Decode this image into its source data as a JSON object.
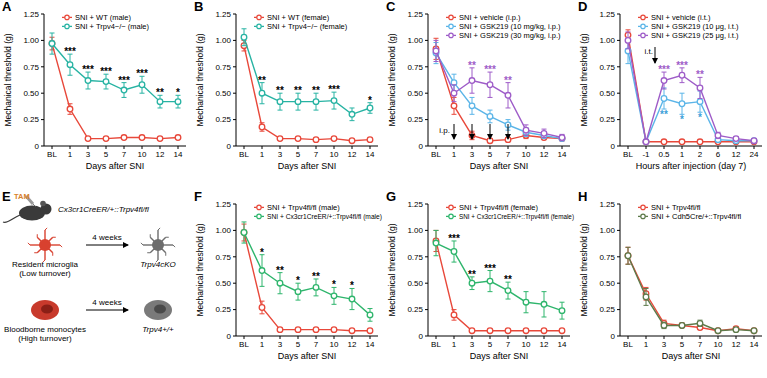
{
  "chart_data": [
    {
      "panel": "A",
      "type": "line",
      "marker": "circle",
      "line_style": "solid",
      "legend": "top-right",
      "x_label": "Days after SNI",
      "y_label": "Mechanical threshold (g)",
      "categories": [
        "BL",
        "1",
        "3",
        "5",
        "7",
        "10",
        "12",
        "14"
      ],
      "ylim": [
        0,
        1.25
      ],
      "yticks": [
        0,
        0.25,
        {
          "value": 0.5,
          "label": "0.50"
        },
        0.75,
        {
          "value": 1,
          "label": "1.00"
        },
        1.25
      ],
      "series": [
        {
          "name": "SNI + WT (male)",
          "color": "#e8483a",
          "values": [
            0.97,
            0.35,
            0.07,
            0.07,
            0.08,
            0.08,
            0.07,
            0.08
          ],
          "errors": [
            0.06,
            0.05,
            0.01,
            0.01,
            0.01,
            0.01,
            0.01,
            0.01
          ]
        },
        {
          "name": "SNI + Trpv4−/− (male)",
          "color": "#27b3a3",
          "values": [
            0.97,
            0.77,
            0.62,
            0.61,
            0.53,
            0.58,
            0.42,
            0.42
          ],
          "errors": [
            0.1,
            0.1,
            0.08,
            0.07,
            0.07,
            0.08,
            0.06,
            0.06
          ]
        }
      ],
      "significance": [
        {
          "series": 1,
          "position": "above",
          "color": "#000000",
          "labels": [
            null,
            "***",
            "***",
            "***",
            "***",
            "***",
            "**",
            "*"
          ]
        }
      ]
    },
    {
      "panel": "B",
      "type": "line",
      "marker": "circle",
      "line_style": "solid",
      "legend": "top-right",
      "x_label": "Days after SNI",
      "y_label": "Mechanical threshold (g)",
      "categories": [
        "BL",
        "1",
        "3",
        "5",
        "7",
        "10",
        "12",
        "14"
      ],
      "ylim": [
        0,
        1.25
      ],
      "yticks": [
        0,
        0.25,
        {
          "value": 0.5,
          "label": "0.50"
        },
        0.75,
        {
          "value": 1,
          "label": "1.00"
        },
        1.25
      ],
      "series": [
        {
          "name": "SNI + WT (female)",
          "color": "#e8483a",
          "values": [
            0.95,
            0.18,
            0.07,
            0.07,
            0.06,
            0.07,
            0.05,
            0.06
          ],
          "errors": [
            0.05,
            0.04,
            0.01,
            0.01,
            0.01,
            0.01,
            0.01,
            0.01
          ]
        },
        {
          "name": "SNI + Trpv4−/− (female)",
          "color": "#27b3a3",
          "values": [
            1.03,
            0.5,
            0.42,
            0.42,
            0.42,
            0.43,
            0.3,
            0.36
          ],
          "errors": [
            0.08,
            0.1,
            0.08,
            0.08,
            0.08,
            0.08,
            0.06,
            0.05
          ]
        }
      ],
      "significance": [
        {
          "series": 1,
          "position": "above",
          "color": "#000000",
          "labels": [
            null,
            "**",
            "**",
            "**",
            "**",
            "***",
            null,
            "*"
          ]
        }
      ]
    },
    {
      "panel": "C",
      "type": "line",
      "marker": "circle",
      "line_style": "solid",
      "legend": "top-right",
      "x_label": "Days after SNI",
      "y_label": "Mechanical threshold (g)",
      "categories": [
        "BL",
        "1",
        "3",
        "5",
        "7",
        "10",
        "12",
        "14"
      ],
      "ylim": [
        0,
        1.25
      ],
      "yticks": [
        0,
        0.25,
        {
          "value": 0.5,
          "label": "0.50"
        },
        0.75,
        {
          "value": 1,
          "label": "1.00"
        },
        1.25
      ],
      "series": [
        {
          "name": "SNI + vehicle (i.p.)",
          "color": "#e8483a",
          "values": [
            0.92,
            0.38,
            0.1,
            0.05,
            0.06,
            0.1,
            0.08,
            0.07
          ],
          "errors": [
            0.1,
            0.08,
            0.04,
            0.02,
            0.02,
            0.03,
            0.02,
            0.02
          ]
        },
        {
          "name": "SNI + GSK219 (10 mg/kg, i.p.)",
          "color": "#5bb5e8",
          "values": [
            0.88,
            0.6,
            0.38,
            0.28,
            0.2,
            0.13,
            0.1,
            0.07
          ],
          "errors": [
            0.1,
            0.08,
            0.08,
            0.06,
            0.05,
            0.04,
            0.03,
            0.02
          ]
        },
        {
          "name": "SNI + GSK219 (30 mg/kg, i.p.)",
          "color": "#9e5cc8",
          "values": [
            0.9,
            0.5,
            0.62,
            0.58,
            0.48,
            0.15,
            0.12,
            0.08
          ],
          "errors": [
            0.1,
            0.08,
            0.12,
            0.12,
            0.12,
            0.05,
            0.04,
            0.03
          ]
        }
      ],
      "significance": [
        {
          "series": 2,
          "position": "above",
          "color": "#9e5cc8",
          "labels": [
            null,
            null,
            "**",
            "***",
            "**",
            null,
            null,
            null
          ]
        }
      ],
      "annotations": [
        {
          "text": "i.p.",
          "at": [
            "1",
            "3",
            "5",
            "7"
          ]
        }
      ]
    },
    {
      "panel": "D",
      "type": "line",
      "marker": "circle",
      "line_style": "solid",
      "legend": "top-right",
      "x_label": "Hours after injection (day 7)",
      "y_label": "Mechanical threshold (g)",
      "categories": [
        "BL",
        "-1",
        "0.5",
        "1",
        "2",
        "6",
        "12",
        "24"
      ],
      "ylim": [
        0,
        1.25
      ],
      "yticks": [
        0,
        0.25,
        {
          "value": 0.5,
          "label": "0.50"
        },
        0.75,
        {
          "value": 1,
          "label": "1.00"
        },
        1.25
      ],
      "series": [
        {
          "name": "SNI + vehicle (i.t.)",
          "color": "#e8483a",
          "values": [
            1.05,
            0.04,
            0.04,
            0.04,
            0.04,
            0.04,
            0.04,
            0.04
          ],
          "errors": [
            0.05,
            0.01,
            0.01,
            0.01,
            0.01,
            0.01,
            0.01,
            0.01
          ]
        },
        {
          "name": "SNI + GSK219 (10 μg, i.t.)",
          "color": "#5bb5e8",
          "values": [
            0.9,
            0.04,
            0.45,
            0.4,
            0.42,
            0.06,
            0.05,
            0.05
          ],
          "errors": [
            0.12,
            0.01,
            0.1,
            0.1,
            0.1,
            0.02,
            0.02,
            0.02
          ]
        },
        {
          "name": "SNI + GSK219 (25 μg, i.t.)",
          "color": "#9e5cc8",
          "values": [
            1.0,
            0.04,
            0.62,
            0.67,
            0.55,
            0.1,
            0.07,
            0.05
          ],
          "errors": [
            0.08,
            0.01,
            0.08,
            0.07,
            0.1,
            0.03,
            0.02,
            0.02
          ]
        }
      ],
      "significance": [
        {
          "series": 2,
          "position": "above",
          "color": "#9e5cc8",
          "labels": [
            null,
            null,
            "***",
            "***",
            "**",
            null,
            null,
            null
          ]
        },
        {
          "series": 1,
          "position": "below",
          "color": "#3a9fd8",
          "labels": [
            null,
            null,
            "**",
            "*",
            "*",
            null,
            null,
            null
          ]
        }
      ],
      "annotations": [
        {
          "text": "i.t.",
          "between": [
            "-1",
            "0.5"
          ]
        }
      ]
    },
    {
      "panel": "F",
      "type": "line",
      "marker": "circle",
      "line_style": "solid",
      "legend": "top-right",
      "x_label": "Days after SNI",
      "y_label": "Mechanical threshold (g)",
      "categories": [
        "BL",
        "1",
        "3",
        "5",
        "7",
        "10",
        "12",
        "14"
      ],
      "ylim": [
        0,
        1.25
      ],
      "yticks": [
        0,
        0.25,
        {
          "value": 0.5,
          "label": "0.50"
        },
        0.75,
        {
          "value": 1,
          "label": "1.00"
        },
        1.25
      ],
      "series": [
        {
          "name": "SNI + Trpv4fl/fl (male)",
          "color": "#e8483a",
          "values": [
            0.98,
            0.27,
            0.06,
            0.06,
            0.06,
            0.06,
            0.05,
            0.05
          ],
          "errors": [
            0.08,
            0.06,
            0.01,
            0.01,
            0.01,
            0.01,
            0.01,
            0.01
          ]
        },
        {
          "name": "SNI + Cx3cr1CreER/+::Trpv4fl/fl (male)",
          "color": "#2eb56c",
          "values": [
            0.98,
            0.62,
            0.5,
            0.42,
            0.46,
            0.38,
            0.35,
            0.2
          ],
          "errors": [
            0.1,
            0.15,
            0.1,
            0.08,
            0.08,
            0.08,
            0.1,
            0.06
          ]
        }
      ],
      "significance": [
        {
          "series": 1,
          "position": "above",
          "color": "#000000",
          "labels": [
            null,
            "*",
            "**",
            "*",
            "**",
            "*",
            "*",
            null
          ]
        }
      ]
    },
    {
      "panel": "G",
      "type": "line",
      "marker": "circle",
      "line_style": "solid",
      "legend": "top-right",
      "x_label": "Days after SNI",
      "y_label": "Mechanical threshold (g)",
      "categories": [
        "BL",
        "1",
        "3",
        "5",
        "7",
        "10",
        "12",
        "14"
      ],
      "ylim": [
        0,
        1.25
      ],
      "yticks": [
        0,
        0.25,
        {
          "value": 0.5,
          "label": "0.50"
        },
        0.75,
        {
          "value": 1,
          "label": "1.00"
        },
        1.25
      ],
      "series": [
        {
          "name": "SNI + Trpv4fl/fl (female)",
          "color": "#e8483a",
          "values": [
            0.9,
            0.2,
            0.05,
            0.05,
            0.05,
            0.05,
            0.05,
            0.05
          ],
          "errors": [
            0.1,
            0.05,
            0.01,
            0.01,
            0.01,
            0.01,
            0.01,
            0.01
          ]
        },
        {
          "name": "SNI + Cx3cr1CreER/+::Trpv4fl/fl (female)",
          "color": "#2eb56c",
          "values": [
            0.88,
            0.8,
            0.5,
            0.52,
            0.43,
            0.32,
            0.3,
            0.24
          ],
          "errors": [
            0.12,
            0.1,
            0.06,
            0.1,
            0.08,
            0.1,
            0.12,
            0.08
          ]
        }
      ],
      "significance": [
        {
          "series": 1,
          "position": "above",
          "color": "#000000",
          "labels": [
            null,
            "***",
            "**",
            "***",
            "**",
            null,
            null,
            null
          ]
        }
      ]
    },
    {
      "panel": "H",
      "type": "line",
      "marker": "circle",
      "line_style": "solid",
      "legend": "top-right",
      "x_label": "Days after SNI",
      "y_label": "Mechanical threshold (g)",
      "categories": [
        "BL",
        "1",
        "3",
        "5",
        "7",
        "10",
        "12",
        "14"
      ],
      "ylim": [
        0,
        1.25
      ],
      "yticks": [
        0,
        0.25,
        {
          "value": 0.5,
          "label": "0.50"
        },
        0.75,
        {
          "value": 1,
          "label": "1.00"
        },
        1.25
      ],
      "series": [
        {
          "name": "SNI + Trpv4fl/fl",
          "color": "#e8483a",
          "values": [
            0.76,
            0.4,
            0.12,
            0.1,
            0.08,
            0.05,
            0.07,
            0.05
          ],
          "errors": [
            0.08,
            0.06,
            0.03,
            0.02,
            0.02,
            0.01,
            0.02,
            0.01
          ]
        },
        {
          "name": "SNI + Cdh5Cre/+::Trpv4fl/fl",
          "color": "#5d7a4a",
          "values": [
            0.76,
            0.37,
            0.1,
            0.1,
            0.12,
            0.05,
            0.06,
            0.05
          ],
          "errors": [
            0.08,
            0.08,
            0.03,
            0.02,
            0.03,
            0.01,
            0.02,
            0.01
          ]
        }
      ]
    }
  ],
  "diagram": {
    "panel": "E",
    "drug": "TAM",
    "genotype": "Cx3cr1CreER/+::Trpv4fl/fl",
    "rows": [
      {
        "cell": "Resident microglia",
        "turnover": "(Low turnover)",
        "interval": "4 weeks",
        "outcome": "Trpv4cKO"
      },
      {
        "cell": "Bloodborne monocytes",
        "turnover": "(High turnover)",
        "interval": "4 weeks",
        "outcome": "Trpv4+/+"
      }
    ]
  }
}
